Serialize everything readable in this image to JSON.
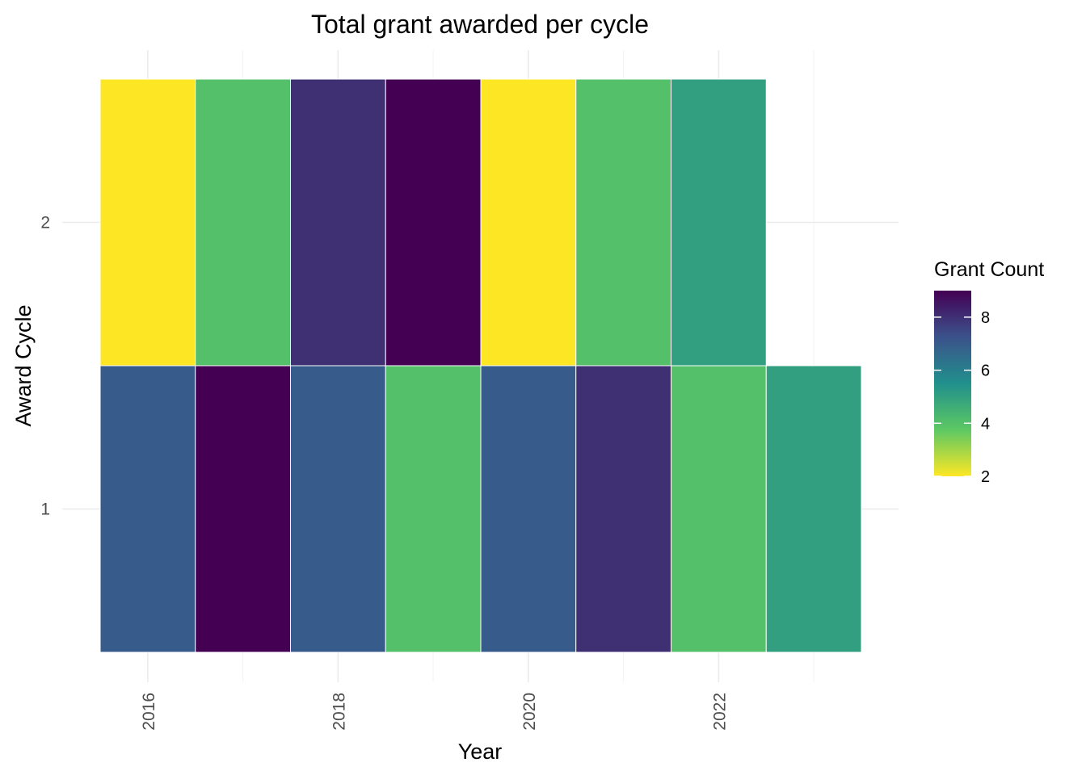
{
  "chart_data": {
    "type": "heatmap",
    "title": "Total grant awarded per cycle",
    "xlabel": "Year",
    "ylabel": "Award Cycle",
    "x_ticks": [
      2016,
      2018,
      2020,
      2022
    ],
    "y_ticks": [
      1,
      2
    ],
    "xlim": [
      2015.5,
      2023.5
    ],
    "ylim": [
      0.5,
      2.5
    ],
    "grid": true,
    "legend": {
      "title": "Grant Count",
      "placement": "right",
      "ticks": [
        2,
        4,
        6,
        8
      ],
      "range": [
        2,
        9
      ]
    },
    "colors": {
      "palette": [
        "#FDE725",
        "#5DC863",
        "#21908C",
        "#3B528B",
        "#440154"
      ]
    },
    "cells": [
      {
        "year": 2016,
        "cycle": 2,
        "count": 2
      },
      {
        "year": 2017,
        "cycle": 2,
        "count": 4
      },
      {
        "year": 2018,
        "cycle": 2,
        "count": 8
      },
      {
        "year": 2019,
        "cycle": 2,
        "count": 9
      },
      {
        "year": 2020,
        "cycle": 2,
        "count": 2
      },
      {
        "year": 2021,
        "cycle": 2,
        "count": 4
      },
      {
        "year": 2022,
        "cycle": 2,
        "count": 5
      },
      {
        "year": 2016,
        "cycle": 1,
        "count": 7
      },
      {
        "year": 2017,
        "cycle": 1,
        "count": 9
      },
      {
        "year": 2018,
        "cycle": 1,
        "count": 7
      },
      {
        "year": 2019,
        "cycle": 1,
        "count": 4
      },
      {
        "year": 2020,
        "cycle": 1,
        "count": 7
      },
      {
        "year": 2021,
        "cycle": 1,
        "count": 8
      },
      {
        "year": 2022,
        "cycle": 1,
        "count": 4
      },
      {
        "year": 2023,
        "cycle": 1,
        "count": 5
      }
    ]
  }
}
